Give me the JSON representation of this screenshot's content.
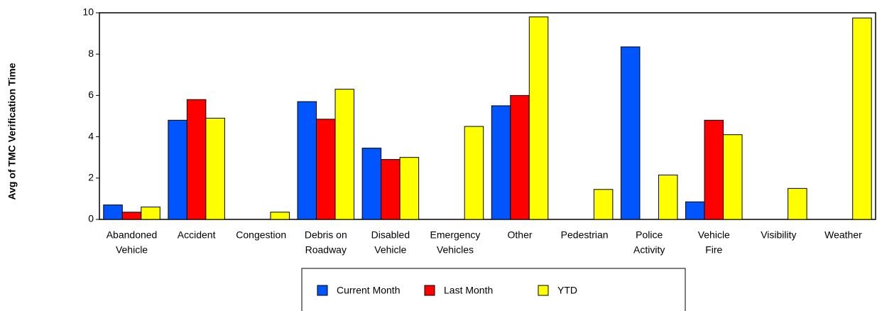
{
  "chart_data": {
    "type": "bar",
    "y_label": "Avg of TMC Verification Time",
    "categories": [
      [
        "Abandoned",
        "Vehicle"
      ],
      [
        "Accident"
      ],
      [
        "Congestion"
      ],
      [
        "Debris on",
        "Roadway"
      ],
      [
        "Disabled",
        "Vehicle"
      ],
      [
        "Emergency",
        "Vehicles"
      ],
      [
        "Other"
      ],
      [
        "Pedestrian"
      ],
      [
        "Police",
        "Activity"
      ],
      [
        "Vehicle",
        "Fire"
      ],
      [
        "Visibility"
      ],
      [
        "Weather"
      ]
    ],
    "series": [
      {
        "name": "Current Month",
        "color": "#0055ff",
        "values": [
          0.7,
          4.8,
          null,
          5.7,
          3.45,
          null,
          5.5,
          null,
          8.35,
          0.85,
          null,
          null
        ]
      },
      {
        "name": "Last Month",
        "color": "#ff0000",
        "values": [
          0.35,
          5.8,
          null,
          4.85,
          2.9,
          null,
          6.0,
          null,
          null,
          4.8,
          null,
          null
        ]
      },
      {
        "name": "YTD",
        "color": "#ffff00",
        "values": [
          0.6,
          4.9,
          0.35,
          6.3,
          3.0,
          4.5,
          9.8,
          1.45,
          2.15,
          4.1,
          1.5,
          9.75
        ]
      }
    ],
    "ylim": [
      0,
      10
    ],
    "yticks": [
      0,
      2,
      4,
      6,
      8,
      10
    ]
  }
}
